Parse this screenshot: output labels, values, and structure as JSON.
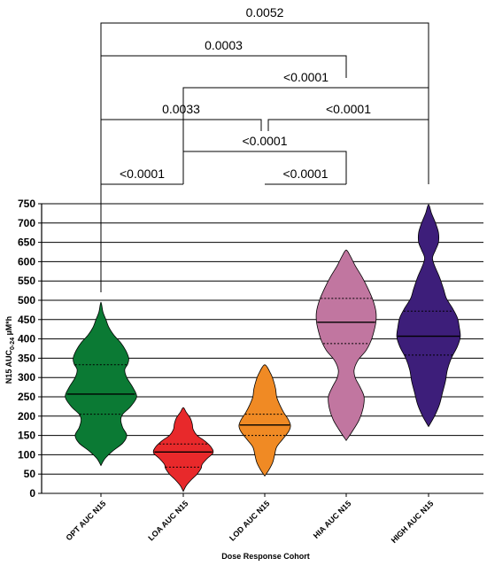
{
  "chart_data": {
    "type": "violin",
    "xlabel": "Dose Response Cohort",
    "ylabel_main": "N15 AUC",
    "ylabel_sub": "0-24",
    "ylabel_unit": " µM*h",
    "ylim": [
      0,
      750
    ],
    "yticks": [
      0,
      50,
      100,
      150,
      200,
      250,
      300,
      350,
      400,
      450,
      500,
      550,
      600,
      650,
      700,
      750
    ],
    "grid": "horizontal",
    "categories": [
      "OPT AUC N15",
      "LOA AUC N15",
      "LOD AUC N15",
      "HIA AUC N15",
      "HIGH AUC N15"
    ],
    "series": [
      {
        "category": "OPT AUC N15",
        "color": "#0b7a34",
        "min": 72,
        "max": 495,
        "median": 257,
        "q1": 205,
        "q3": 333,
        "density": [
          [
            72,
            0
          ],
          [
            90,
            4
          ],
          [
            110,
            12
          ],
          [
            130,
            22
          ],
          [
            150,
            26
          ],
          [
            170,
            22
          ],
          [
            190,
            20
          ],
          [
            205,
            22
          ],
          [
            225,
            30
          ],
          [
            250,
            36
          ],
          [
            275,
            32
          ],
          [
            300,
            26
          ],
          [
            320,
            24
          ],
          [
            335,
            27
          ],
          [
            350,
            28
          ],
          [
            370,
            25
          ],
          [
            390,
            20
          ],
          [
            410,
            13
          ],
          [
            430,
            8
          ],
          [
            450,
            5
          ],
          [
            470,
            2
          ],
          [
            495,
            0
          ]
        ]
      },
      {
        "category": "LOA AUC N15",
        "color": "#e8292b",
        "min": 5,
        "max": 222,
        "median": 107,
        "q1": 68,
        "q3": 128,
        "density": [
          [
            5,
            0
          ],
          [
            20,
            3
          ],
          [
            35,
            8
          ],
          [
            50,
            14
          ],
          [
            65,
            18
          ],
          [
            75,
            19
          ],
          [
            90,
            24
          ],
          [
            105,
            30
          ],
          [
            120,
            28
          ],
          [
            135,
            22
          ],
          [
            150,
            14
          ],
          [
            165,
            10
          ],
          [
            180,
            9
          ],
          [
            195,
            7
          ],
          [
            210,
            3
          ],
          [
            222,
            0
          ]
        ]
      },
      {
        "category": "LOD AUC N15",
        "color": "#f08a24",
        "min": 45,
        "max": 333,
        "median": 177,
        "q1": 150,
        "q3": 205,
        "density": [
          [
            45,
            0
          ],
          [
            60,
            4
          ],
          [
            80,
            8
          ],
          [
            100,
            10
          ],
          [
            120,
            12
          ],
          [
            140,
            18
          ],
          [
            160,
            24
          ],
          [
            175,
            26
          ],
          [
            190,
            24
          ],
          [
            210,
            19
          ],
          [
            230,
            15
          ],
          [
            250,
            12
          ],
          [
            270,
            11
          ],
          [
            290,
            9
          ],
          [
            310,
            6
          ],
          [
            333,
            0
          ]
        ]
      },
      {
        "category": "HIA AUC N15",
        "color": "#c176a0",
        "min": 137,
        "max": 630,
        "median": 443,
        "q1": 388,
        "q3": 505,
        "density": [
          [
            137,
            0
          ],
          [
            160,
            6
          ],
          [
            190,
            13
          ],
          [
            220,
            17
          ],
          [
            250,
            18
          ],
          [
            275,
            14
          ],
          [
            300,
            9
          ],
          [
            320,
            8
          ],
          [
            345,
            12
          ],
          [
            370,
            20
          ],
          [
            395,
            25
          ],
          [
            420,
            28
          ],
          [
            445,
            30
          ],
          [
            470,
            30
          ],
          [
            500,
            27
          ],
          [
            530,
            22
          ],
          [
            560,
            16
          ],
          [
            590,
            9
          ],
          [
            615,
            4
          ],
          [
            630,
            0
          ]
        ]
      },
      {
        "category": "HIGH AUC N15",
        "color": "#3d1e7a",
        "min": 173,
        "max": 748,
        "median": 407,
        "q1": 358,
        "q3": 472,
        "density": [
          [
            173,
            0
          ],
          [
            200,
            6
          ],
          [
            230,
            11
          ],
          [
            260,
            14
          ],
          [
            290,
            17
          ],
          [
            320,
            19
          ],
          [
            350,
            23
          ],
          [
            380,
            29
          ],
          [
            405,
            32
          ],
          [
            430,
            31
          ],
          [
            455,
            29
          ],
          [
            480,
            24
          ],
          [
            505,
            18
          ],
          [
            530,
            15
          ],
          [
            560,
            11
          ],
          [
            590,
            6
          ],
          [
            610,
            4
          ],
          [
            630,
            7
          ],
          [
            650,
            10
          ],
          [
            675,
            10
          ],
          [
            700,
            7
          ],
          [
            725,
            3
          ],
          [
            748,
            0
          ]
        ]
      }
    ],
    "comparisons": [
      {
        "a": 0,
        "b": 1,
        "label": "<0.0001"
      },
      {
        "a": 2,
        "b": 3,
        "label": "<0.0001"
      },
      {
        "a": 1,
        "b": 3,
        "label": "<0.0001"
      },
      {
        "a": 0,
        "b": 2,
        "label": "0.0033"
      },
      {
        "a": 2,
        "b": 4,
        "label": "<0.0001"
      },
      {
        "a": 1,
        "b": 4,
        "label": "<0.0001"
      },
      {
        "a": 0,
        "b": 3,
        "label": "0.0003"
      },
      {
        "a": 0,
        "b": 4,
        "label": "0.0052"
      }
    ]
  }
}
